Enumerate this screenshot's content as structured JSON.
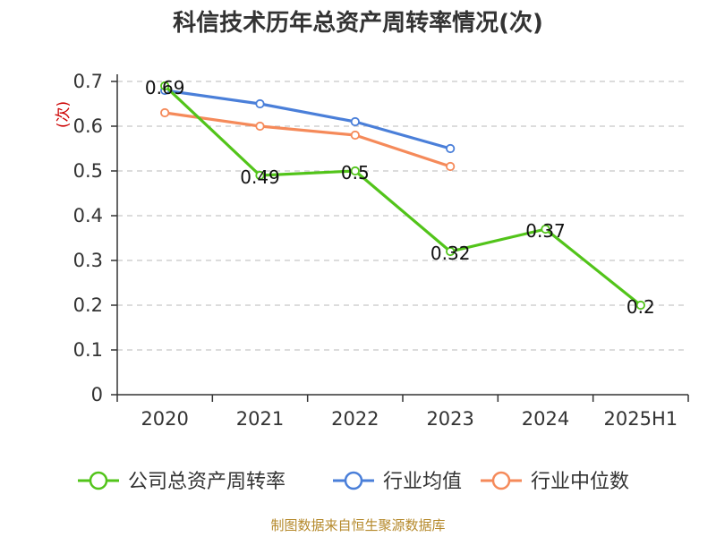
{
  "chart_data": {
    "type": "line",
    "title": "科信技术历年总资产周转率情况(次)",
    "ylabel": "(次)",
    "xlabel": "",
    "categories": [
      "2020",
      "2021",
      "2022",
      "2023",
      "2024",
      "2025H1"
    ],
    "ylim": [
      0,
      0.7
    ],
    "yticks": [
      "0",
      "0.1",
      "0.2",
      "0.3",
      "0.4",
      "0.5",
      "0.6",
      "0.7"
    ],
    "grid": true,
    "legend_position": "bottom",
    "series": [
      {
        "name": "公司总资产周转率",
        "color": "#52c41a",
        "values": [
          0.69,
          0.49,
          0.5,
          0.32,
          0.37,
          0.2
        ],
        "labels": [
          "0.69",
          "0.49",
          "0.5",
          "0.32",
          "0.37",
          "0.2"
        ]
      },
      {
        "name": "行业均值",
        "color": "#4a7fd9",
        "values": [
          0.68,
          0.65,
          0.61,
          0.55,
          null,
          null
        ]
      },
      {
        "name": "行业中位数",
        "color": "#f58a5a",
        "values": [
          0.63,
          0.6,
          0.58,
          0.51,
          null,
          null
        ]
      }
    ]
  },
  "footer": {
    "source": "制图数据来自恒生聚源数据库"
  }
}
